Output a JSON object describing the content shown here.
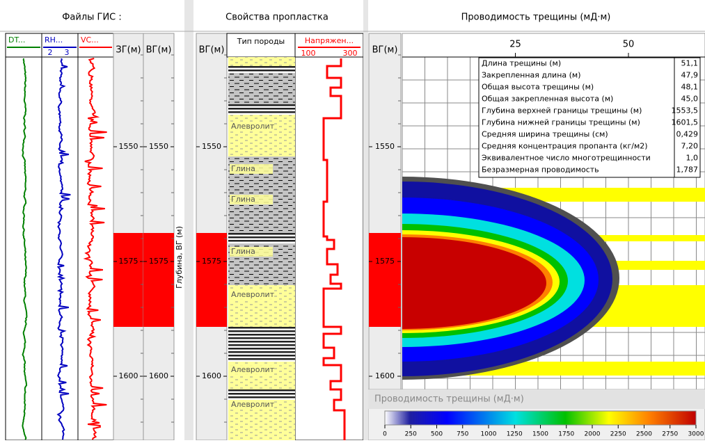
{
  "panels": {
    "logs": {
      "title": "Файлы ГИС :",
      "tracks": [
        "DT...",
        "RH...",
        "VC..."
      ],
      "rh_scale": [
        2,
        3
      ],
      "columns": [
        "ЗГ(м)",
        "ВГ(м)"
      ],
      "depth_axis_label": "Глубина, ВГ (м)"
    },
    "layer": {
      "title": "Свойства пропластка",
      "depth_column": "ВГ(м)",
      "rock_type": "Тип породы",
      "stress": "Напряжен...",
      "stress_scale": [
        100,
        300
      ],
      "rock_labels": [
        "Алевролит",
        "Глина",
        "Глина",
        "Глина",
        "Алевролит",
        "Алевролит",
        "Алевролит"
      ]
    },
    "fracture": {
      "title": "Проводимость трещины (мД·м)",
      "depth_column": "ВГ(м)",
      "x_ticks": [
        25,
        50
      ],
      "properties": [
        {
          "label": "Длина трещины (м)",
          "value": "51,1"
        },
        {
          "label": "Закрепленная длина (м)",
          "value": "47,9"
        },
        {
          "label": "Общая высота трещины (м)",
          "value": "48,1"
        },
        {
          "label": "Общая закрепленная высота (м)",
          "value": "45,0"
        },
        {
          "label": "Глубина верхней границы трещины (м)",
          "value": "1553,5"
        },
        {
          "label": "Глубина нижней границы трещины (м)",
          "value": "1601,5"
        },
        {
          "label": "Средняя ширина трещины (см)",
          "value": "0,429"
        },
        {
          "label": "Средняя концентрация пропанта (кг/м2)",
          "value": "7,20"
        },
        {
          "label": "Эквивалентное число многотрещинности",
          "value": "1,0"
        },
        {
          "label": "Безразмерная проводимость",
          "value": "1,787"
        }
      ],
      "colorbar": {
        "title": "Проводимость трещины (мД·м)",
        "ticks": [
          0,
          250,
          500,
          750,
          1000,
          1250,
          1500,
          1750,
          2000,
          2250,
          2500,
          2750,
          3000
        ]
      }
    }
  },
  "depth_ticks": [
    1550,
    1575,
    1600
  ]
}
